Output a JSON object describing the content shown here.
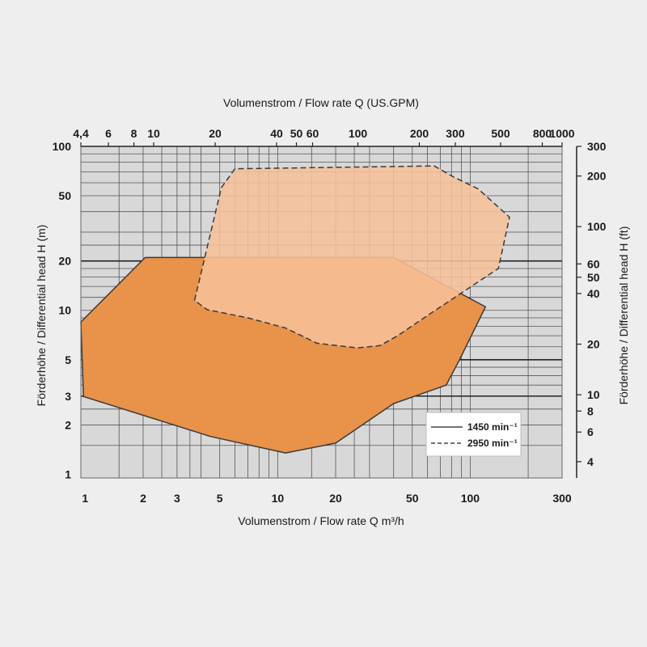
{
  "chart_data": {
    "type": "area",
    "title": "",
    "xlabel": "Volumenstrom / Flow rate Q m³/h",
    "x2label": "Volumenstrom / Flow rate Q (US.GPM)",
    "ylabel": "Förderhöhe / Differential head H (m)",
    "y2label": "Förderhöhe / Differential head H (ft)",
    "x_scale": "log",
    "y_scale": "log",
    "xlim": [
      0.95,
      300
    ],
    "ylim": [
      0.95,
      100
    ],
    "x2lim": [
      4.4,
      1000
    ],
    "y2lim": [
      3.2,
      300
    ],
    "grid": true,
    "legend_position": "bottom-right",
    "x_ticks": [
      {
        "value": 1,
        "label": "1"
      },
      {
        "value": 2,
        "label": "2"
      },
      {
        "value": 3,
        "label": "3"
      },
      {
        "value": 5,
        "label": "5"
      },
      {
        "value": 10,
        "label": "10"
      },
      {
        "value": 20,
        "label": "20"
      },
      {
        "value": 50,
        "label": "50"
      },
      {
        "value": 100,
        "label": "100"
      },
      {
        "value": 300,
        "label": "300"
      }
    ],
    "y_ticks": [
      {
        "value": 1,
        "label": "1"
      },
      {
        "value": 2,
        "label": "2"
      },
      {
        "value": 3,
        "label": "3"
      },
      {
        "value": 5,
        "label": "5"
      },
      {
        "value": 10,
        "label": "10"
      },
      {
        "value": 20,
        "label": "20"
      },
      {
        "value": 50,
        "label": "50"
      },
      {
        "value": 100,
        "label": "100"
      }
    ],
    "x2_ticks": [
      {
        "value": 4.4,
        "label": "4,4"
      },
      {
        "value": 6,
        "label": "6"
      },
      {
        "value": 8,
        "label": "8"
      },
      {
        "value": 10,
        "label": "10"
      },
      {
        "value": 20,
        "label": "20"
      },
      {
        "value": 40,
        "label": "40"
      },
      {
        "value": 50,
        "label": "50"
      },
      {
        "value": 60,
        "label": "60"
      },
      {
        "value": 100,
        "label": "100"
      },
      {
        "value": 200,
        "label": "200"
      },
      {
        "value": 300,
        "label": "300"
      },
      {
        "value": 500,
        "label": "500"
      },
      {
        "value": 800,
        "label": "800"
      },
      {
        "value": 1000,
        "label": "1000"
      }
    ],
    "y2_ticks": [
      {
        "value": 4,
        "label": "4"
      },
      {
        "value": 6,
        "label": "6"
      },
      {
        "value": 8,
        "label": "8"
      },
      {
        "value": 10,
        "label": "10"
      },
      {
        "value": 20,
        "label": "20"
      },
      {
        "value": 40,
        "label": "40"
      },
      {
        "value": 50,
        "label": "50"
      },
      {
        "value": 60,
        "label": "60"
      },
      {
        "value": 100,
        "label": "100"
      },
      {
        "value": 200,
        "label": "200"
      },
      {
        "value": 300,
        "label": "300"
      }
    ],
    "grid_x": [
      1.5,
      2,
      2.5,
      3,
      3.5,
      4,
      5,
      6,
      7,
      8,
      9,
      10,
      15,
      20,
      25,
      30,
      40,
      50,
      60,
      70,
      80,
      90,
      100,
      200
    ],
    "grid_y": [
      1.5,
      2,
      2.5,
      3,
      3.5,
      4,
      4.5,
      5,
      6,
      7,
      8,
      9,
      10,
      12,
      14,
      16,
      18,
      20,
      25,
      30,
      40,
      50,
      60,
      70,
      80,
      90,
      100
    ],
    "grid_y_bold": [
      3,
      5,
      20
    ],
    "series": [
      {
        "name": "1450 min⁻¹",
        "line_style": "solid",
        "fill": "#e8924a",
        "points": [
          [
            0.95,
            8.5
          ],
          [
            0.98,
            2.98
          ],
          [
            4.5,
            1.7
          ],
          [
            11,
            1.35
          ],
          [
            20,
            1.55
          ],
          [
            40,
            2.7
          ],
          [
            75,
            3.5
          ],
          [
            88,
            5
          ],
          [
            120,
            10.5
          ],
          [
            40,
            21
          ],
          [
            2.05,
            21
          ],
          [
            0.95,
            8.5
          ]
        ]
      },
      {
        "name": "2950 min⁻¹",
        "line_style": "dashed",
        "fill": "#f6c099",
        "points": [
          [
            3.7,
            11.5
          ],
          [
            5.1,
            56
          ],
          [
            6,
            73
          ],
          [
            65,
            76
          ],
          [
            82,
            65
          ],
          [
            110,
            55
          ],
          [
            160,
            37
          ],
          [
            140,
            18
          ],
          [
            60,
            9.3
          ],
          [
            42,
            7
          ],
          [
            34,
            6.1
          ],
          [
            26,
            5.9
          ],
          [
            16,
            6.3
          ],
          [
            11,
            7.8
          ],
          [
            7,
            9
          ],
          [
            4.3,
            10.1
          ],
          [
            3.7,
            11.5
          ]
        ]
      }
    ]
  }
}
